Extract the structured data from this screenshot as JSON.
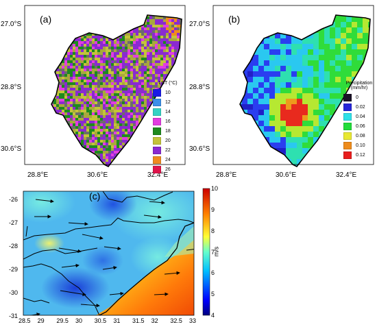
{
  "panel_a": {
    "label": "(a)",
    "lat_labels": [
      "27.0°S",
      "28.8°S",
      "30.6°S"
    ],
    "lon_labels": [
      "28.8°E",
      "30.6°E",
      "32.4°E"
    ],
    "legend_title": "LST (°C)",
    "legend": [
      {
        "value": "10",
        "color": "#1a1ae6"
      },
      {
        "value": "12",
        "color": "#3b8fe8"
      },
      {
        "value": "14",
        "color": "#35d3c4"
      },
      {
        "value": "16",
        "color": "#e23de0"
      },
      {
        "value": "18",
        "color": "#1e8a1e"
      },
      {
        "value": "20",
        "color": "#c4c43a"
      },
      {
        "value": "22",
        "color": "#8a2ad1"
      },
      {
        "value": "24",
        "color": "#f08b1f"
      },
      {
        "value": "26",
        "color": "#e0144b"
      }
    ]
  },
  "panel_b": {
    "label": "(b)",
    "lat_labels": [
      "27.0°S",
      "28.8°S",
      "30.6°S"
    ],
    "lon_labels": [
      "28.8°E",
      "30.6°E",
      "32.4°E"
    ],
    "legend_title": "Precipitation (mm/hr)",
    "legend": [
      {
        "value": "0",
        "color": "#1a1226"
      },
      {
        "value": "0.02",
        "color": "#2626d8"
      },
      {
        "value": "0.04",
        "color": "#2ee0e8"
      },
      {
        "value": "0.06",
        "color": "#22dc3a"
      },
      {
        "value": "0.08",
        "color": "#e8e832"
      },
      {
        "value": "0.10",
        "color": "#ee8c1c"
      },
      {
        "value": "0.12",
        "color": "#e81e1e"
      }
    ]
  },
  "panel_c": {
    "label": "(c)",
    "x_ticks": [
      "28.5",
      "29",
      "29.5",
      "30",
      "30.5",
      "31",
      "31.5",
      "32",
      "32.5",
      "33"
    ],
    "y_ticks": [
      "-26",
      "-27",
      "-28",
      "-29",
      "-30",
      "-31"
    ],
    "colorbar_ticks": [
      "10",
      "9",
      "8",
      "7",
      "6",
      "5",
      "4"
    ],
    "colorbar_unit": "m/s"
  }
}
